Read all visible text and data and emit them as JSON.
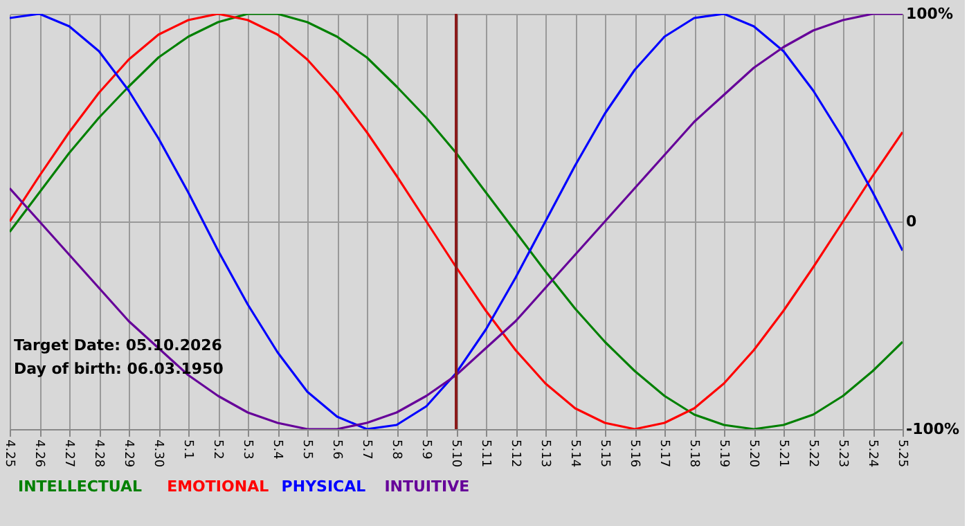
{
  "chart_data": {
    "type": "line",
    "categories": [
      "4.25",
      "4.26",
      "4.27",
      "4.28",
      "4.29",
      "4.30",
      "5.1",
      "5.2",
      "5.3",
      "5.4",
      "5.5",
      "5.6",
      "5.7",
      "5.8",
      "5.9",
      "5.10",
      "5.11",
      "5.12",
      "5.13",
      "5.14",
      "5.15",
      "5.16",
      "5.17",
      "5.18",
      "5.19",
      "5.20",
      "5.21",
      "5.22",
      "5.23",
      "5.24",
      "5.25"
    ],
    "series": [
      {
        "name": "INTELLECTUAL",
        "color": "#008000",
        "values": [
          -5,
          14,
          33,
          50,
          65,
          79,
          89,
          96,
          100,
          100,
          96,
          89,
          79,
          65,
          50,
          33,
          14,
          -5,
          -24,
          -42,
          -58,
          -72,
          -84,
          -93,
          -98,
          -100,
          -98,
          -93,
          -84,
          -72,
          -58
        ]
      },
      {
        "name": "EMOTIONAL",
        "color": "#ff0000",
        "values": [
          0,
          22,
          43,
          62,
          78,
          90,
          97,
          100,
          97,
          90,
          78,
          62,
          43,
          22,
          0,
          -22,
          -43,
          -62,
          -78,
          -90,
          -97,
          -100,
          -97,
          -90,
          -78,
          -62,
          -43,
          -22,
          0,
          22,
          43
        ]
      },
      {
        "name": "PHYSICAL",
        "color": "#0000ff",
        "values": [
          98,
          100,
          94,
          82,
          63,
          40,
          14,
          -14,
          -40,
          -63,
          -82,
          -94,
          -100,
          -98,
          -89,
          -73,
          -52,
          -27,
          0,
          27,
          52,
          73,
          89,
          98,
          100,
          94,
          82,
          63,
          40,
          14,
          -14
        ]
      },
      {
        "name": "INTUITIVE",
        "color": "#660099",
        "values": [
          16,
          0,
          -16,
          -32,
          -48,
          -61,
          -74,
          -84,
          -92,
          -97,
          -100,
          -100,
          -97,
          -92,
          -84,
          -74,
          -61,
          -48,
          -32,
          -16,
          0,
          16,
          32,
          48,
          61,
          74,
          84,
          92,
          97,
          100,
          100
        ]
      }
    ],
    "ylim": [
      -100,
      100
    ],
    "yticks": [
      {
        "value": 100,
        "label": "100%"
      },
      0,
      {
        "value": -100,
        "label": "-100%"
      }
    ],
    "grid": true,
    "legend": "bottom left",
    "ref_lines": [
      {
        "axis": "x",
        "value": "5.10",
        "color": "#8b1a1a"
      }
    ],
    "annotations": [
      "Target Date: 05.10.2026",
      "Day of birth: 06.03.1950"
    ]
  }
}
